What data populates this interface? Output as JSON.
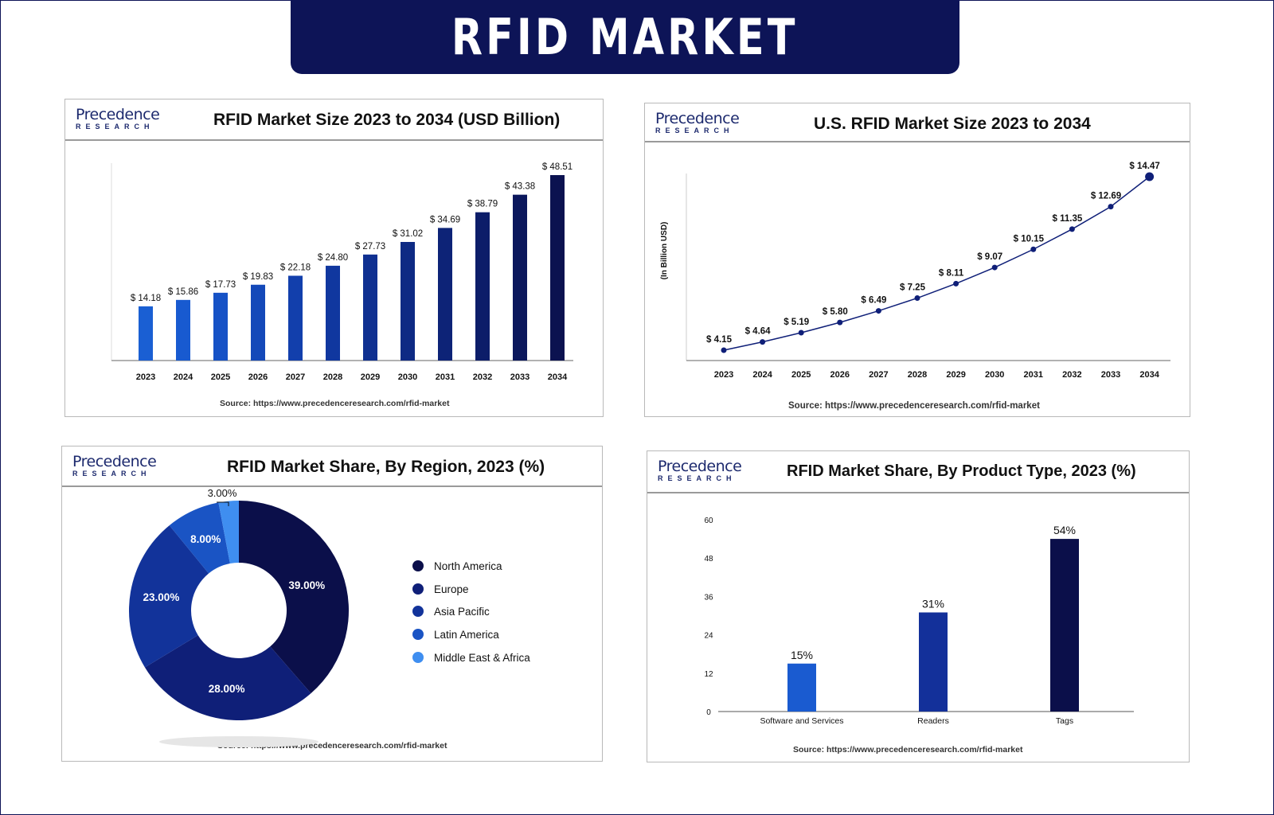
{
  "header": {
    "title": "RFID MARKET"
  },
  "logo": {
    "line1": "Precedence",
    "line2": "RESEARCH"
  },
  "source": "Source: https://www.precedenceresearch.com/rfid-market",
  "chart_data": [
    {
      "type": "bar",
      "title": "RFID Market Size 2023 to 2034 (USD Billion)",
      "categories": [
        "2023",
        "2024",
        "2025",
        "2026",
        "2027",
        "2028",
        "2029",
        "2030",
        "2031",
        "2032",
        "2033",
        "2034"
      ],
      "values": [
        14.18,
        15.86,
        17.73,
        19.83,
        22.18,
        24.8,
        27.73,
        31.02,
        34.69,
        38.79,
        43.38,
        48.51
      ],
      "data_labels": [
        "$ 14.18",
        "$ 15.86",
        "$ 17.73",
        "$ 19.83",
        "$ 22.18",
        "$ 24.80",
        "$ 27.73",
        "$ 31.02",
        "$ 34.69",
        "$ 38.79",
        "$ 43.38",
        "$ 48.51"
      ],
      "colors": [
        "#1a5fd3",
        "#185ad0",
        "#1652c6",
        "#1449b9",
        "#123fac",
        "#10379f",
        "#0f3091",
        "#0e2a84",
        "#0d2377",
        "#0c1d69",
        "#0b175c",
        "#0b1250"
      ],
      "ylim": [
        0,
        52
      ],
      "grid": false
    },
    {
      "type": "line",
      "title": "U.S. RFID Market Size 2023 to 2034",
      "ylabel": "(In Billion USD)",
      "x": [
        "2023",
        "2024",
        "2025",
        "2026",
        "2027",
        "2028",
        "2029",
        "2030",
        "2031",
        "2032",
        "2033",
        "2034"
      ],
      "values": [
        4.15,
        4.64,
        5.19,
        5.8,
        6.49,
        7.25,
        8.11,
        9.07,
        10.15,
        11.35,
        12.69,
        14.47
      ],
      "data_labels": [
        "$ 4.15",
        "$ 4.64",
        "$ 5.19",
        "$ 5.80",
        "$ 6.49",
        "$ 7.25",
        "$ 8.11",
        "$ 9.07",
        "$ 10.15",
        "$ 11.35",
        "$ 12.69",
        "$ 14.47"
      ],
      "color": "#0f1f78",
      "ylim": [
        3.5,
        15
      ],
      "grid": false
    },
    {
      "type": "pie",
      "title": "RFID Market Share, By Region, 2023 (%)",
      "labels": [
        "North America",
        "Europe",
        "Asia Pacific",
        "Latin America",
        "Middle East & Africa"
      ],
      "values": [
        39,
        28,
        23,
        8,
        3
      ],
      "data_labels": [
        "39.00%",
        "28.00%",
        "23.00%",
        "8.00%",
        "3.00%"
      ],
      "colors": [
        "#0b0f4a",
        "#0f1f78",
        "#12339a",
        "#1a54c4",
        "#3f8ef0"
      ],
      "donut": true,
      "legend": "right"
    },
    {
      "type": "bar",
      "title": "RFID Market Share, By Product Type, 2023 (%)",
      "categories": [
        "Software and Services",
        "Readers",
        "Tags"
      ],
      "values": [
        15,
        31,
        54
      ],
      "data_labels": [
        "15%",
        "31%",
        "54%"
      ],
      "colors": [
        "#1a5bd0",
        "#13309a",
        "#0b0f4a"
      ],
      "yticks": [
        "0",
        "12",
        "24",
        "36",
        "48",
        "60"
      ],
      "ylim": [
        0,
        60
      ],
      "grid": false
    }
  ]
}
